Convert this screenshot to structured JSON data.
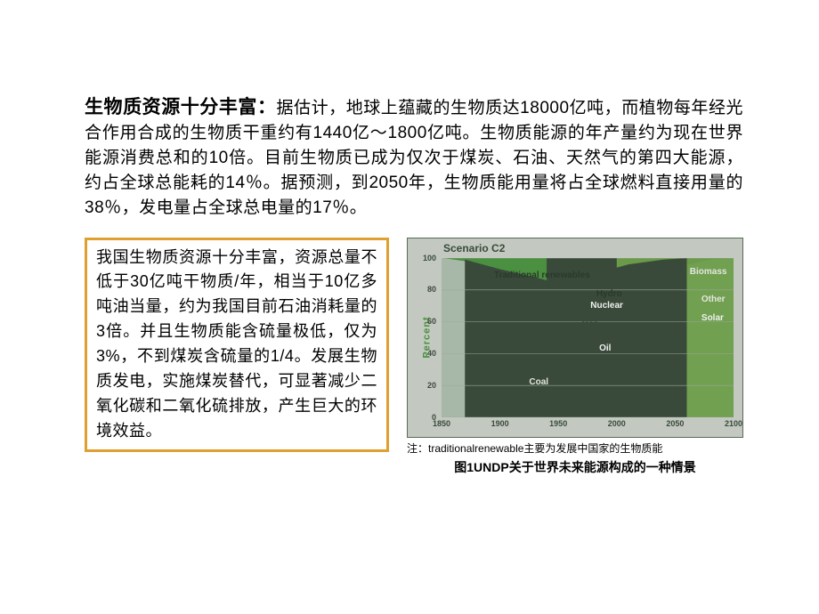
{
  "top_paragraph": {
    "lead": "生物质资源十分丰富：",
    "body": "据估计，地球上蕴藏的生物质达18000亿吨，而植物每年经光合作用合成的生物质干重约有1440亿～1800亿吨。生物质能源的年产量约为现在世界能源消费总和的10倍。目前生物质已成为仅次于煤炭、石油、天然气的第四大能源，约占全球总能耗的14％。据预测，到2050年，生物质能用量将占全球燃料直接用量的38％，发电量占全球总电量的17％。"
  },
  "boxed_paragraph": "我国生物质资源十分丰富，资源总量不低于30亿吨干物质/年，相当于10亿多吨油当量，约为我国目前石油消耗量的3倍。并且生物质能含硫量极低，仅为3%，不到煤炭含硫量的1/4。发展生物质发电，实施煤炭替代，可显著减少二氧化碳和二氧化硫排放，产生巨大的环境效益。",
  "box_border_color": "#e0a030",
  "chart": {
    "type": "area",
    "scenario_label": "Scenario C2",
    "background_color": "#c3c9c0",
    "plot_background_color": "#e5e5df",
    "border_color": "#5a6a5a",
    "x_axis": {
      "ticks": [
        "1850",
        "1900",
        "1950",
        "2000",
        "2050",
        "2100"
      ],
      "min": 1850,
      "max": 2100
    },
    "y_axis": {
      "label": "Percent",
      "ticks": [
        "0",
        "20",
        "40",
        "60",
        "80",
        "100"
      ],
      "min": 0,
      "max": 100,
      "label_color": "#4a9040"
    },
    "series": [
      {
        "name": "Traditional renewables",
        "color": "#4a9040",
        "label": "Traditional renewables",
        "label_pos": {
          "x": 18,
          "y": 8
        },
        "label_color": "#2a3a2a",
        "data": [
          [
            1850,
            100
          ],
          [
            1870,
            98
          ],
          [
            1900,
            83
          ],
          [
            1920,
            72
          ],
          [
            1940,
            60
          ],
          [
            1950,
            53
          ],
          [
            1970,
            48
          ],
          [
            2000,
            40
          ],
          [
            2050,
            34
          ],
          [
            2100,
            30
          ]
        ]
      },
      {
        "name": "Biomass",
        "color": "#3a4a3a",
        "label": "Biomass",
        "label_pos": {
          "x": 85,
          "y": 6
        },
        "label_color": "#e5e5df",
        "data": [
          [
            1940,
            58
          ],
          [
            1970,
            48
          ],
          [
            2000,
            41
          ],
          [
            2020,
            44
          ],
          [
            2050,
            55
          ],
          [
            2080,
            68
          ],
          [
            2100,
            78
          ]
        ]
      },
      {
        "name": "Hydro",
        "color": "#a8b8a8",
        "label": "Hydro",
        "label_pos": {
          "x": 53,
          "y": 20
        },
        "label_color": "#2a3a2a",
        "data": [
          [
            1880,
            96
          ],
          [
            1900,
            85
          ],
          [
            1930,
            74
          ],
          [
            1950,
            70
          ],
          [
            1970,
            67
          ],
          [
            2000,
            64
          ],
          [
            2050,
            62
          ],
          [
            2100,
            65
          ]
        ]
      },
      {
        "name": "Nuclear",
        "color": "#7a8a7a",
        "label": "Nuclear",
        "label_pos": {
          "x": 51,
          "y": 27
        },
        "label_color": "#f0f0f0",
        "data": [
          [
            1960,
            68
          ],
          [
            1980,
            70
          ],
          [
            2000,
            72
          ],
          [
            2030,
            74
          ],
          [
            2060,
            75
          ],
          [
            2100,
            77
          ]
        ]
      },
      {
        "name": "Other",
        "color": "#556555",
        "label": "Other",
        "label_pos": {
          "x": 89,
          "y": 23
        },
        "label_color": "#e5e5df",
        "data": [
          [
            2010,
            76
          ],
          [
            2050,
            82
          ],
          [
            2100,
            90
          ]
        ]
      },
      {
        "name": "Solar",
        "color": "#6a9a4a",
        "label": "Solar",
        "label_pos": {
          "x": 89,
          "y": 35
        },
        "label_color": "#f0f0f0",
        "data": [
          [
            2000,
            78
          ],
          [
            2030,
            82
          ],
          [
            2060,
            90
          ],
          [
            2100,
            100
          ]
        ]
      },
      {
        "name": "Gas",
        "color": "#d8dcd4",
        "label": "Gas",
        "label_pos": {
          "x": 48,
          "y": 39
        },
        "label_color": "#3a4a3a",
        "data": [
          [
            1890,
            92
          ],
          [
            1920,
            85
          ],
          [
            1950,
            80
          ],
          [
            1970,
            80
          ],
          [
            1990,
            82
          ],
          [
            2020,
            88
          ],
          [
            2050,
            94
          ],
          [
            2080,
            99
          ],
          [
            2100,
            100
          ]
        ]
      },
      {
        "name": "Oil",
        "color": "#70a050",
        "label": "Oil",
        "label_pos": {
          "x": 54,
          "y": 54
        },
        "label_color": "#f0f0f0",
        "data": [
          [
            1870,
            99
          ],
          [
            1900,
            93
          ],
          [
            1930,
            88
          ],
          [
            1950,
            84
          ],
          [
            1970,
            88
          ],
          [
            1990,
            92
          ],
          [
            2010,
            96
          ],
          [
            2040,
            99
          ],
          [
            2060,
            100
          ]
        ]
      },
      {
        "name": "Coal",
        "color": "#3a4a3a",
        "label": "Coal",
        "label_pos": {
          "x": 30,
          "y": 75
        },
        "label_color": "#e5e5df",
        "data": [
          [
            1850,
            100
          ],
          [
            1870,
            100
          ],
          [
            1900,
            95
          ],
          [
            1930,
            92
          ],
          [
            1950,
            93
          ],
          [
            1970,
            94
          ],
          [
            1990,
            97
          ],
          [
            2010,
            99
          ],
          [
            2030,
            100
          ]
        ]
      }
    ]
  },
  "chart_note": "注：traditionalrenewable主要为发展中国家的生物质能",
  "chart_caption": "图1UNDP关于世界未来能源构成的一种情景"
}
